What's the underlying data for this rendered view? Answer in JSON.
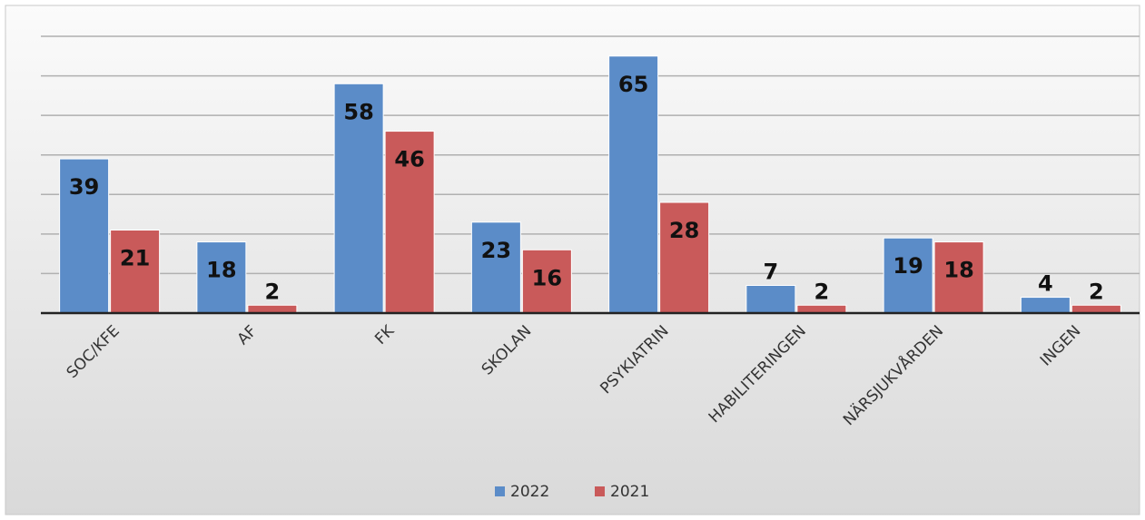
{
  "chart_data": {
    "type": "bar",
    "categories": [
      "SOC/KFE",
      "AF",
      "FK",
      "SKOLAN",
      "PSYKIATRIN",
      "HABILITERINGEN",
      "NÄRSJUKVÅRDEN",
      "INGEN"
    ],
    "series": [
      {
        "name": "2022",
        "color": "#5b8cc8",
        "values": [
          39,
          18,
          58,
          23,
          65,
          7,
          19,
          4
        ]
      },
      {
        "name": "2021",
        "color": "#c95a5a",
        "values": [
          21,
          2,
          46,
          16,
          28,
          2,
          18,
          2
        ]
      }
    ],
    "ylim": [
      0,
      70
    ],
    "yticks": [
      10,
      20,
      30,
      40,
      50,
      60,
      70
    ],
    "grid": true,
    "legend": "bottom"
  }
}
